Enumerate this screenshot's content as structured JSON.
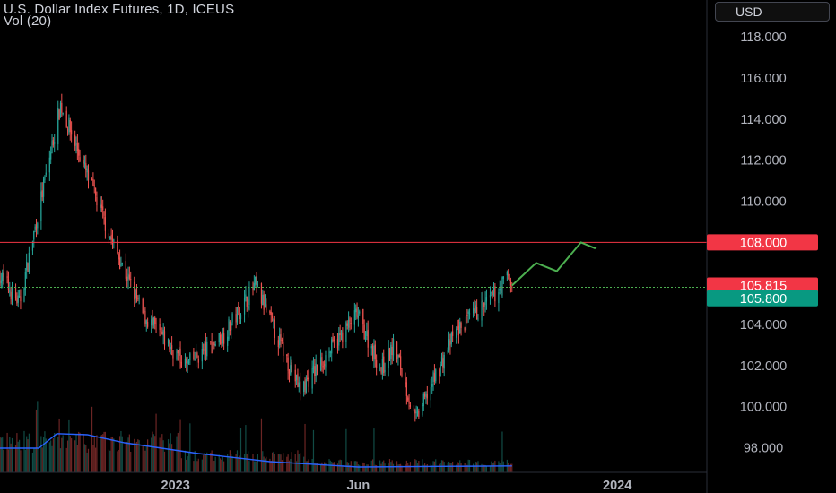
{
  "header": {
    "title": "U.S. Dollar Index Futures, 1D, ICEUS",
    "volume_label": "Vol (20)"
  },
  "currency_button": {
    "label": "USD"
  },
  "colors": {
    "up": "#26a69a",
    "down": "#ef5350",
    "volume_ma": "#2962ff",
    "level_line": "#f23645",
    "projection": "#4caf50",
    "grid_axis": "#2a2e39"
  },
  "chart_data": {
    "type": "candlestick",
    "y_axis": {
      "ticks": [
        "118.000",
        "116.000",
        "114.000",
        "112.000",
        "110.000",
        "104.000",
        "102.000",
        "100.000",
        "98.000"
      ],
      "tick_values": [
        118,
        116,
        114,
        112,
        110,
        104,
        102,
        100,
        98
      ],
      "range": [
        96.8,
        119.8
      ]
    },
    "x_axis": {
      "labels": [
        "2023",
        "Jun",
        "2024"
      ],
      "label_dates": [
        "2023-01-01",
        "2023-06-01",
        "2024-01-01"
      ],
      "range": [
        "2022-08-09",
        "2024-03-15"
      ]
    },
    "price_tags": [
      {
        "label": "108.000",
        "value": 108.0,
        "kind": "level"
      },
      {
        "label": "105.815",
        "value": 105.815,
        "kind": "last"
      },
      {
        "label": "105.800",
        "value": 105.8,
        "kind": "bid"
      }
    ],
    "resistance_level": 108.0,
    "last_price": 105.815,
    "key_points": [
      {
        "date": "2022-08-09",
        "price": 106.4
      },
      {
        "date": "2022-08-25",
        "price": 105.0
      },
      {
        "date": "2022-09-28",
        "price": 114.7
      },
      {
        "date": "2022-11-10",
        "price": 108.0
      },
      {
        "date": "2022-12-05",
        "price": 104.5
      },
      {
        "date": "2023-01-10",
        "price": 102.0
      },
      {
        "date": "2023-02-10",
        "price": 103.5
      },
      {
        "date": "2023-03-08",
        "price": 105.9
      },
      {
        "date": "2023-04-14",
        "price": 100.8
      },
      {
        "date": "2023-05-31",
        "price": 104.5
      },
      {
        "date": "2023-06-20",
        "price": 101.8
      },
      {
        "date": "2023-07-01",
        "price": 103.0
      },
      {
        "date": "2023-07-18",
        "price": 99.3
      },
      {
        "date": "2023-08-20",
        "price": 103.6
      },
      {
        "date": "2023-09-20",
        "price": 105.3
      },
      {
        "date": "2023-10-03",
        "price": 106.4
      },
      {
        "date": "2023-10-06",
        "price": 105.815
      }
    ],
    "projection_path": [
      {
        "date": "2023-10-06",
        "price": 105.9
      },
      {
        "date": "2023-10-26",
        "price": 107.0
      },
      {
        "date": "2023-11-12",
        "price": 106.6
      },
      {
        "date": "2023-12-02",
        "price": 108.0
      },
      {
        "date": "2023-12-14",
        "price": 107.7
      }
    ],
    "volume_ma_path": [
      {
        "date": "2022-08-09",
        "v": 0.45
      },
      {
        "date": "2022-09-10",
        "v": 0.45
      },
      {
        "date": "2022-09-25",
        "v": 0.72
      },
      {
        "date": "2022-10-20",
        "v": 0.7
      },
      {
        "date": "2022-11-20",
        "v": 0.55
      },
      {
        "date": "2023-01-20",
        "v": 0.35
      },
      {
        "date": "2023-03-20",
        "v": 0.2
      },
      {
        "date": "2023-06-01",
        "v": 0.1
      },
      {
        "date": "2023-10-06",
        "v": 0.12
      }
    ]
  }
}
